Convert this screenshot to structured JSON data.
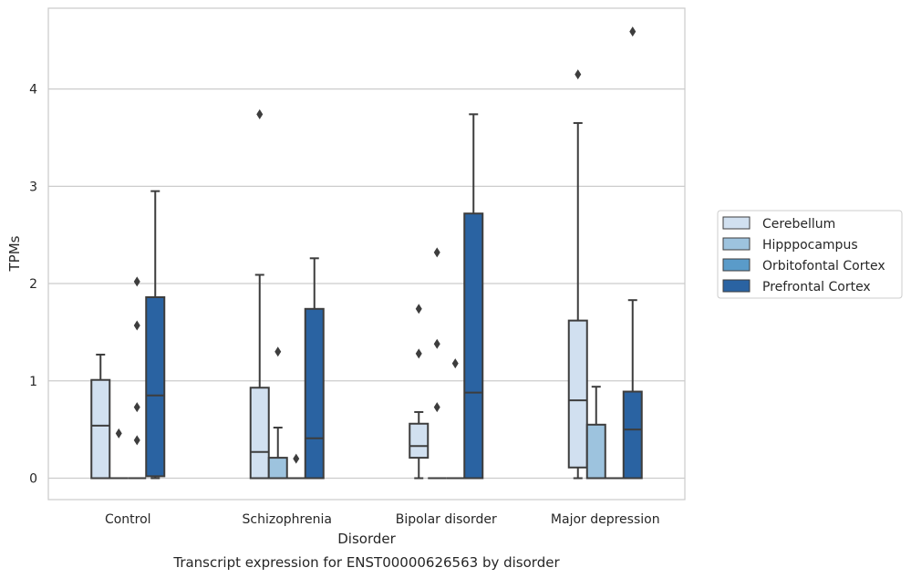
{
  "chart_data": {
    "type": "boxplot",
    "title": "Transcript expression for ENST00000626563 by disorder",
    "xlabel": "Disorder",
    "ylabel": "TPMs",
    "categories": [
      "Control",
      "Schizophrenia",
      "Bipolar disorder",
      "Major depression"
    ],
    "ylim": [
      -0.22,
      4.83
    ],
    "yticks": [
      0,
      1,
      2,
      3,
      4
    ],
    "grid": "horizontal",
    "legend_position": "right",
    "series": [
      {
        "name": "Cerebellum",
        "color": "#d1e0f0",
        "boxes": [
          {
            "whisker_low": 0,
            "q1": 0,
            "median": 0.54,
            "q3": 1.01,
            "whisker_high": 1.27,
            "outliers": []
          },
          {
            "whisker_low": 0,
            "q1": 0,
            "median": 0.27,
            "q3": 0.93,
            "whisker_high": 2.09,
            "outliers": [
              3.74
            ]
          },
          {
            "whisker_low": 0,
            "q1": 0.21,
            "median": 0.33,
            "q3": 0.56,
            "whisker_high": 0.68,
            "outliers": [
              1.74,
              1.28
            ]
          },
          {
            "whisker_low": 0,
            "q1": 0.11,
            "median": 0.8,
            "q3": 1.62,
            "whisker_high": 3.65,
            "outliers": [
              4.15
            ]
          }
        ]
      },
      {
        "name": "Hipppocampus",
        "color": "#9dc3de",
        "boxes": [
          {
            "whisker_low": 0,
            "q1": 0,
            "median": 0,
            "q3": 0,
            "whisker_high": 0,
            "outliers": [
              0.46
            ]
          },
          {
            "whisker_low": 0,
            "q1": 0,
            "median": 0,
            "q3": 0.21,
            "whisker_high": 0.52,
            "outliers": [
              1.3
            ]
          },
          {
            "whisker_low": 0,
            "q1": 0,
            "median": 0,
            "q3": 0,
            "whisker_high": 0,
            "outliers": [
              2.32,
              1.38,
              0.73
            ]
          },
          {
            "whisker_low": 0,
            "q1": 0,
            "median": 0,
            "q3": 0.55,
            "whisker_high": 0.94,
            "outliers": []
          }
        ]
      },
      {
        "name": "Orbitofontal Cortex",
        "color": "#5a9bc9",
        "boxes": [
          {
            "whisker_low": 0,
            "q1": 0,
            "median": 0,
            "q3": 0,
            "whisker_high": 0,
            "outliers": [
              2.02,
              1.57,
              0.73,
              0.39
            ]
          },
          {
            "whisker_low": 0,
            "q1": 0,
            "median": 0,
            "q3": 0,
            "whisker_high": 0,
            "outliers": [
              0.2
            ]
          },
          {
            "whisker_low": 0,
            "q1": 0,
            "median": 0,
            "q3": 0,
            "whisker_high": 0,
            "outliers": [
              1.18
            ]
          },
          {
            "whisker_low": 0,
            "q1": 0,
            "median": 0,
            "q3": 0,
            "whisker_high": 0,
            "outliers": []
          }
        ]
      },
      {
        "name": "Prefrontal Cortex",
        "color": "#2a63a2",
        "boxes": [
          {
            "whisker_low": 0,
            "q1": 0.02,
            "median": 0.85,
            "q3": 1.86,
            "whisker_high": 2.95,
            "outliers": []
          },
          {
            "whisker_low": 0,
            "q1": 0,
            "median": 0.41,
            "q3": 1.74,
            "whisker_high": 2.26,
            "outliers": []
          },
          {
            "whisker_low": 0,
            "q1": 0,
            "median": 0.88,
            "q3": 2.72,
            "whisker_high": 3.74,
            "outliers": []
          },
          {
            "whisker_low": 0,
            "q1": 0,
            "median": 0.5,
            "q3": 0.89,
            "whisker_high": 1.83,
            "outliers": [
              4.59
            ]
          }
        ]
      }
    ]
  }
}
